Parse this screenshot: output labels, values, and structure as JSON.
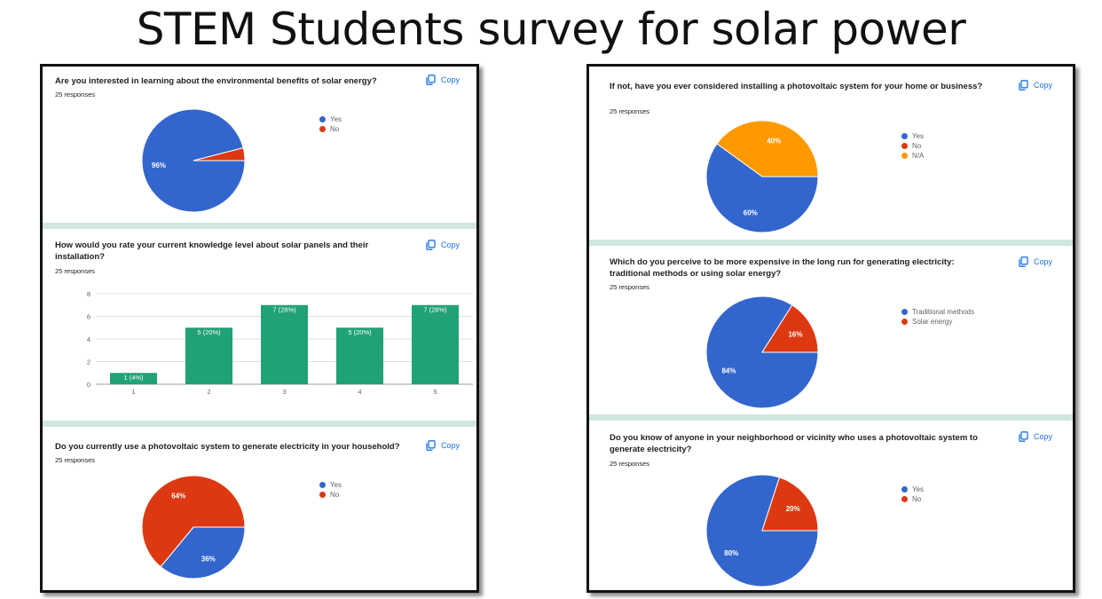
{
  "page_title": "STEM Students survey for solar power",
  "copy_label": "Copy",
  "chart_data": [
    {
      "type": "pie",
      "title": "Are you interested in learning about the environmental benefits of solar energy?",
      "subtitle": "25 responses",
      "categories": [
        "Yes",
        "No"
      ],
      "values": [
        96,
        4
      ],
      "labels": [
        "96%",
        ""
      ],
      "colors": [
        "#3366cc",
        "#dc3912"
      ],
      "legend": "right"
    },
    {
      "type": "bar",
      "title": "How would you rate your current knowledge level about solar panels and their installation?",
      "subtitle": "25 responses",
      "categories": [
        "1",
        "2",
        "3",
        "4",
        "5"
      ],
      "values": [
        1,
        5,
        7,
        5,
        7
      ],
      "data_labels": [
        "1 (4%)",
        "5 (20%)",
        "7 (28%)",
        "5 (20%)",
        "7 (28%)"
      ],
      "yticks": [
        "0",
        "2",
        "4",
        "6",
        "8"
      ],
      "ylim": [
        0,
        8
      ],
      "color": "#21a176",
      "grid": true
    },
    {
      "type": "pie",
      "title": "Do you currently use a photovoltaic system to generate electricity in your household?",
      "subtitle": "25 responses",
      "categories": [
        "Yes",
        "No"
      ],
      "values": [
        36,
        64
      ],
      "labels": [
        "36%",
        "64%"
      ],
      "colors": [
        "#3366cc",
        "#dc3912"
      ],
      "legend": "right"
    },
    {
      "type": "pie",
      "title": "If not, have you ever considered installing a photovoltaic system for your home or business?",
      "subtitle": "25 responses",
      "categories": [
        "Yes",
        "No",
        "N/A"
      ],
      "values": [
        60,
        0,
        40
      ],
      "labels": [
        "60%",
        "",
        "40%"
      ],
      "colors": [
        "#3366cc",
        "#dc3912",
        "#ff9900"
      ],
      "legend": "right"
    },
    {
      "type": "pie",
      "title": "Which do you perceive to be more expensive in the long run for generating electricity: traditional methods or using solar energy?",
      "subtitle": "25 responses",
      "categories": [
        "Traditional methods",
        "Solar energy"
      ],
      "values": [
        84,
        16
      ],
      "labels": [
        "84%",
        "16%"
      ],
      "colors": [
        "#3366cc",
        "#dc3912"
      ],
      "legend": "right"
    },
    {
      "type": "pie",
      "title": "Do you know of anyone in your neighborhood or vicinity who uses a photovoltaic system to generate electricity?",
      "subtitle": "25 responses",
      "categories": [
        "Yes",
        "No"
      ],
      "values": [
        80,
        20
      ],
      "labels": [
        "80%",
        "20%"
      ],
      "colors": [
        "#3366cc",
        "#dc3912"
      ],
      "legend": "right"
    }
  ]
}
